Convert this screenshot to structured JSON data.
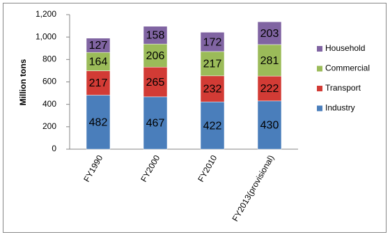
{
  "chart_data": {
    "type": "bar",
    "stacked": true,
    "y_label": "Million tons",
    "categories": [
      "FY1990",
      "FY2000",
      "FY2010",
      "FY2013(provisional)"
    ],
    "series": [
      {
        "name": "Industry",
        "color": "#4a7ebb",
        "values": [
          482,
          467,
          422,
          430
        ]
      },
      {
        "name": "Transport",
        "color": "#d23b35",
        "values": [
          217,
          265,
          232,
          222
        ]
      },
      {
        "name": "Commercial",
        "color": "#9bbb59",
        "values": [
          164,
          206,
          217,
          281
        ]
      },
      {
        "name": "Household",
        "color": "#8064a2",
        "values": [
          127,
          158,
          172,
          203
        ]
      }
    ],
    "ylim": [
      0,
      1200
    ],
    "yticks": [
      0,
      200,
      400,
      600,
      800,
      {
        "value": 1000,
        "label": "1,000"
      },
      {
        "value": 1200,
        "label": "1,200"
      }
    ],
    "grid": false,
    "legend": "right"
  }
}
